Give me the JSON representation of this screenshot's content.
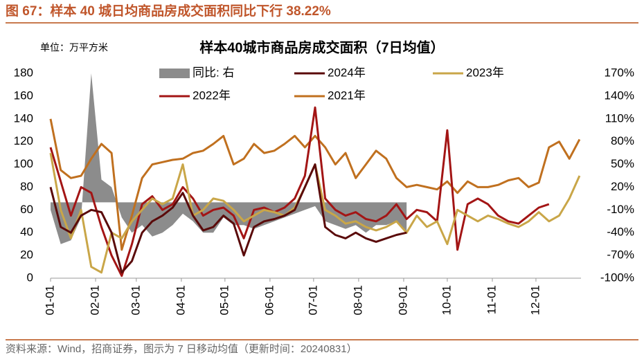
{
  "header": {
    "title": "图 67：样本 40 城日均商品房成交面积同比下行 38.22%"
  },
  "footer": {
    "source": "资料来源：Wind，招商证券，图示为 7 日移动均值（更新时间：20240831）"
  },
  "chart_data": {
    "type": "line",
    "title": "样本40城市商品房成交面积（7日均值）",
    "unit_label": "单位：万平方米",
    "x": [
      0,
      7,
      14,
      21,
      28,
      35,
      42,
      49,
      56,
      63,
      70,
      77,
      84,
      91,
      98,
      105,
      112,
      119,
      126,
      133,
      140,
      147,
      154,
      161,
      168,
      175,
      182,
      189,
      196,
      203,
      210,
      217,
      224,
      231,
      238,
      245,
      252,
      259,
      266,
      273,
      280,
      287,
      294,
      301,
      308,
      315,
      322,
      329,
      336,
      343,
      350,
      357,
      364
    ],
    "xlim": [
      0,
      365
    ],
    "xticks": [
      {
        "value": 0,
        "label": "01-01"
      },
      {
        "value": 31,
        "label": "02-01"
      },
      {
        "value": 59,
        "label": "03-01"
      },
      {
        "value": 90,
        "label": "04-01"
      },
      {
        "value": 120,
        "label": "05-01"
      },
      {
        "value": 151,
        "label": "06-01"
      },
      {
        "value": 181,
        "label": "07-01"
      },
      {
        "value": 212,
        "label": "08-01"
      },
      {
        "value": 243,
        "label": "09-01"
      },
      {
        "value": 273,
        "label": "10-01"
      },
      {
        "value": 304,
        "label": "11-01"
      },
      {
        "value": 334,
        "label": "12-01"
      }
    ],
    "ylim": [
      0,
      180
    ],
    "yticks": [
      0,
      20,
      40,
      60,
      80,
      100,
      120,
      140,
      160,
      180
    ],
    "y2lim": [
      -100,
      170
    ],
    "y2ticks": [
      {
        "value": -100,
        "label": "-100%"
      },
      {
        "value": -70,
        "label": "-70%"
      },
      {
        "value": -40,
        "label": "-40%"
      },
      {
        "value": -10,
        "label": "-10%"
      },
      {
        "value": 20,
        "label": "20%"
      },
      {
        "value": 50,
        "label": "50%"
      },
      {
        "value": 80,
        "label": "80%"
      },
      {
        "value": 110,
        "label": "110%"
      },
      {
        "value": 140,
        "label": "140%"
      },
      {
        "value": 170,
        "label": "170%"
      }
    ],
    "series": [
      {
        "name": "同比: 右",
        "type": "area",
        "axis": "y2",
        "color": "#8C8C8C",
        "values": [
          -10,
          -55,
          -50,
          -20,
          170,
          30,
          20,
          -20,
          -40,
          -30,
          -45,
          -40,
          -30,
          -15,
          -25,
          -40,
          -40,
          -20,
          -30,
          -30,
          -35,
          -30,
          -25,
          -20,
          -15,
          -10,
          -5,
          -25,
          -30,
          -35,
          -30,
          -40,
          -30,
          -30,
          -25,
          -38,
          null,
          null,
          null,
          null,
          null,
          null,
          null,
          null,
          null,
          null,
          null,
          null,
          null,
          null,
          null,
          null,
          null
        ]
      },
      {
        "name": "2024年",
        "color": "#5A0A0A",
        "values": [
          80,
          45,
          40,
          55,
          60,
          58,
          40,
          5,
          15,
          40,
          50,
          55,
          62,
          75,
          55,
          42,
          45,
          55,
          48,
          20,
          45,
          50,
          52,
          55,
          60,
          80,
          100,
          45,
          38,
          35,
          40,
          35,
          32,
          35,
          38,
          40,
          null,
          null,
          null,
          null,
          null,
          null,
          null,
          null,
          null,
          null,
          null,
          null,
          null,
          null,
          null,
          null,
          null
        ]
      },
      {
        "name": "2023年",
        "color": "#C9A648",
        "values": [
          110,
          60,
          35,
          60,
          10,
          5,
          40,
          35,
          50,
          60,
          70,
          65,
          70,
          100,
          55,
          60,
          70,
          68,
          60,
          50,
          55,
          60,
          58,
          55,
          62,
          80,
          100,
          60,
          55,
          48,
          50,
          45,
          42,
          45,
          50,
          40,
          55,
          45,
          50,
          30,
          60,
          55,
          50,
          55,
          52,
          48,
          45,
          50,
          58,
          50,
          55,
          70,
          90
        ]
      },
      {
        "name": "2022年",
        "color": "#A31515",
        "values": [
          115,
          85,
          55,
          80,
          75,
          45,
          20,
          2,
          30,
          65,
          72,
          60,
          65,
          80,
          70,
          55,
          60,
          62,
          55,
          35,
          60,
          62,
          58,
          62,
          70,
          90,
          150,
          70,
          60,
          55,
          58,
          52,
          50,
          55,
          65,
          52,
          60,
          58,
          50,
          130,
          25,
          65,
          70,
          65,
          55,
          50,
          48,
          55,
          62,
          65,
          null,
          null,
          null
        ]
      },
      {
        "name": "2021年",
        "color": "#C0701F",
        "values": [
          140,
          95,
          88,
          90,
          105,
          118,
          110,
          25,
          55,
          88,
          100,
          102,
          104,
          105,
          110,
          112,
          118,
          125,
          100,
          105,
          118,
          110,
          112,
          118,
          125,
          115,
          125,
          115,
          100,
          110,
          88,
          100,
          112,
          105,
          88,
          80,
          82,
          80,
          78,
          85,
          75,
          85,
          80,
          80,
          82,
          86,
          88,
          80,
          84,
          115,
          120,
          105,
          122
        ]
      }
    ]
  }
}
